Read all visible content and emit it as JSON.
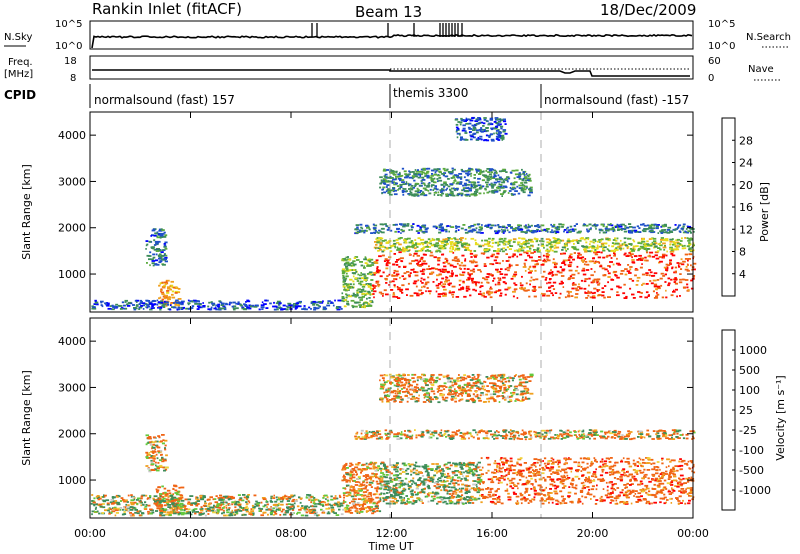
{
  "header": {
    "station": "Rankin Inlet (fitACF)",
    "beam": "Beam 13",
    "date": "18/Dec/2009"
  },
  "noise_panel": {
    "left_label": "N.Sky",
    "right_label": "N.Search",
    "left_ticks": [
      "10^5",
      "10^0"
    ],
    "right_ticks": [
      "10^5",
      "10^0"
    ]
  },
  "freq_panel": {
    "left_label_line1": "Freq.",
    "left_label_line2": "[MHz]",
    "right_label": "Nave",
    "left_ticks": [
      "18",
      "8"
    ],
    "right_ticks": [
      "60",
      "0"
    ]
  },
  "cpid_panel": {
    "label": "CPID",
    "segments": [
      {
        "start_hour": 0,
        "text": "normalsound (fast) 157"
      },
      {
        "start_hour": 12,
        "text": "themis 3300"
      },
      {
        "start_hour": 18,
        "text": "normalsound (fast) -157"
      }
    ]
  },
  "time_axis": {
    "label": "Time UT",
    "ticks": [
      "00:00",
      "04:00",
      "08:00",
      "12:00",
      "16:00",
      "20:00",
      "00:00"
    ]
  },
  "power_panel": {
    "ylabel": "Slant Range [km]",
    "yticks": [
      "1000",
      "2000",
      "3000",
      "4000"
    ],
    "colorbar_label": "Power [dB]",
    "colorbar_ticks": [
      "4",
      "8",
      "12",
      "16",
      "20",
      "24",
      "28"
    ]
  },
  "velocity_panel": {
    "ylabel": "Slant Range [km]",
    "yticks": [
      "1000",
      "2000",
      "3000",
      "4000"
    ],
    "colorbar_label": "Velocity [m s⁻¹]",
    "colorbar_ticks": [
      "1000",
      "500",
      "100",
      "25",
      "-25",
      "-100",
      "-500",
      "-1000"
    ]
  },
  "chart_data": [
    {
      "type": "heatmap",
      "title": "Power",
      "xlabel": "Time UT",
      "ylabel": "Slant Range [km]",
      "xlim": [
        0,
        24
      ],
      "ylim": [
        180,
        4500
      ],
      "colorbar": {
        "label": "Power [dB]",
        "range": [
          0,
          32
        ],
        "colors": [
          "#0000ff",
          "#1e50c8",
          "#3c8c5a",
          "#5aaa3c",
          "#e6dc1e",
          "#f0a01e",
          "#f06414",
          "#ff0000"
        ]
      },
      "regions": [
        {
          "t": [
            2.7,
            3.5
          ],
          "r": [
            300,
            900
          ],
          "power_db": 22
        },
        {
          "t": [
            2.2,
            3.0
          ],
          "r": [
            1200,
            2000
          ],
          "power_db": 8
        },
        {
          "t": [
            0,
            10
          ],
          "r": [
            250,
            450
          ],
          "power_db": 6
        },
        {
          "t": [
            10.0,
            11.2
          ],
          "r": [
            300,
            1400
          ],
          "power_db": 14
        },
        {
          "t": [
            11.2,
            24
          ],
          "r": [
            500,
            1500
          ],
          "power_db": 28
        },
        {
          "t": [
            11.2,
            24
          ],
          "r": [
            1500,
            1800
          ],
          "power_db": 16
        },
        {
          "t": [
            10.5,
            24
          ],
          "r": [
            1900,
            2100
          ],
          "power_db": 8
        },
        {
          "t": [
            11.5,
            17.5
          ],
          "r": [
            2700,
            3300
          ],
          "power_db": 10
        },
        {
          "t": [
            14.5,
            16.5
          ],
          "r": [
            3900,
            4400
          ],
          "power_db": 6
        }
      ]
    },
    {
      "type": "heatmap",
      "title": "Velocity",
      "xlabel": "Time UT",
      "ylabel": "Slant Range [km]",
      "xlim": [
        0,
        24
      ],
      "ylim": [
        180,
        4500
      ],
      "colorbar": {
        "label": "Velocity [m s⁻¹]",
        "range": [
          -1000,
          1000
        ],
        "colors": [
          "#ff0000",
          "#f06414",
          "#f0a01e",
          "#f0d23c",
          "#c8c8c8",
          "#64c83c",
          "#3c8c5a",
          "#0a6e8c",
          "#1e3cc8"
        ]
      },
      "regions": [
        {
          "t": [
            2.6,
            3.6
          ],
          "r": [
            300,
            900
          ],
          "velocity": -200
        },
        {
          "t": [
            2.2,
            3.0
          ],
          "r": [
            1200,
            2000
          ],
          "velocity": -100
        },
        {
          "t": [
            0,
            10
          ],
          "r": [
            250,
            700
          ],
          "velocity": 50
        },
        {
          "t": [
            10.0,
            11.5
          ],
          "r": [
            300,
            1400
          ],
          "velocity": -150
        },
        {
          "t": [
            11.5,
            15.5
          ],
          "r": [
            500,
            1400
          ],
          "velocity": 100
        },
        {
          "t": [
            15.5,
            24
          ],
          "r": [
            500,
            1500
          ],
          "velocity": -300
        },
        {
          "t": [
            10.5,
            24
          ],
          "r": [
            1900,
            2100
          ],
          "velocity": -50
        },
        {
          "t": [
            11.5,
            17.5
          ],
          "r": [
            2700,
            3300
          ],
          "velocity": -100
        }
      ]
    }
  ]
}
